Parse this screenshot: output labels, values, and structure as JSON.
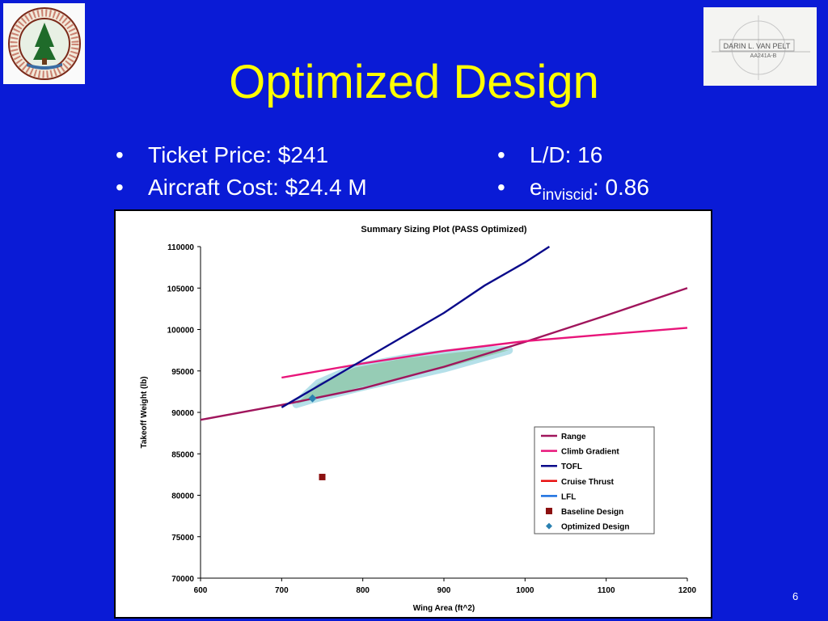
{
  "slide": {
    "title": "Optimized Design",
    "number": "6",
    "bullets_left": [
      {
        "text": "Ticket Price: $241"
      },
      {
        "text": "Aircraft Cost:  $24.4 M"
      }
    ],
    "bullets_right": [
      {
        "text": "L/D: 16"
      },
      {
        "prefix": "e",
        "subscript": "inviscid",
        "suffix": ": 0.86"
      }
    ],
    "logo_left_text": "LELAND STANFORD JUNIOR UNIVERSITY · ORGANIZED 1891",
    "logo_right_text": [
      "DARIN L. VAN PELT",
      "AA241A-B"
    ]
  },
  "chart_data": {
    "type": "line",
    "title": "Summary Sizing Plot (PASS Optimized)",
    "xlabel": "Wing Area (ft^2)",
    "ylabel": "Takeoff Weight (lb)",
    "xlim": [
      600,
      1200
    ],
    "ylim": [
      70000,
      110000
    ],
    "x_ticks": [
      "600",
      "700",
      "800",
      "900",
      "1000",
      "1100",
      "1200"
    ],
    "y_ticks": [
      "70000",
      "75000",
      "80000",
      "85000",
      "90000",
      "95000",
      "100000",
      "105000",
      "110000"
    ],
    "grid": false,
    "legend_position": "bottom-right",
    "series": [
      {
        "name": "Range",
        "color": "#a0155c",
        "x": [
          600,
          700,
          800,
          900,
          1000,
          1100,
          1200
        ],
        "y": [
          89100,
          90900,
          92900,
          95500,
          98500,
          101700,
          105000
        ]
      },
      {
        "name": "Climb Gradient",
        "color": "#e8157a",
        "x": [
          700,
          800,
          900,
          950,
          1000,
          1100,
          1200
        ],
        "y": [
          94200,
          95900,
          97400,
          98000,
          98600,
          99400,
          100200
        ]
      },
      {
        "name": "TOFL",
        "color": "#0a0a8a",
        "x": [
          700,
          800,
          900,
          950,
          1000,
          1030
        ],
        "y": [
          90600,
          96300,
          102000,
          105300,
          108100,
          110000
        ]
      },
      {
        "name": "Cruise Thrust",
        "color": "#e81010",
        "x": [],
        "y": []
      },
      {
        "name": "LFL",
        "color": "#1a6fe0",
        "x": [],
        "y": []
      }
    ],
    "points": [
      {
        "name": "Baseline Design",
        "marker": "square",
        "color": "#8b1010",
        "x": 750,
        "y": 82200
      },
      {
        "name": "Optimized Design",
        "marker": "diamond",
        "color": "#2a80b0",
        "x": 738,
        "y": 91700
      }
    ],
    "feasible_region": {
      "color": "#a9dbe6",
      "fill": "#8fc7a8",
      "x": [
        718,
        738,
        800,
        900,
        980,
        940,
        850,
        790,
        745
      ],
      "y": [
        91000,
        91600,
        93100,
        95300,
        97500,
        97500,
        96500,
        95400,
        93500
      ]
    }
  }
}
